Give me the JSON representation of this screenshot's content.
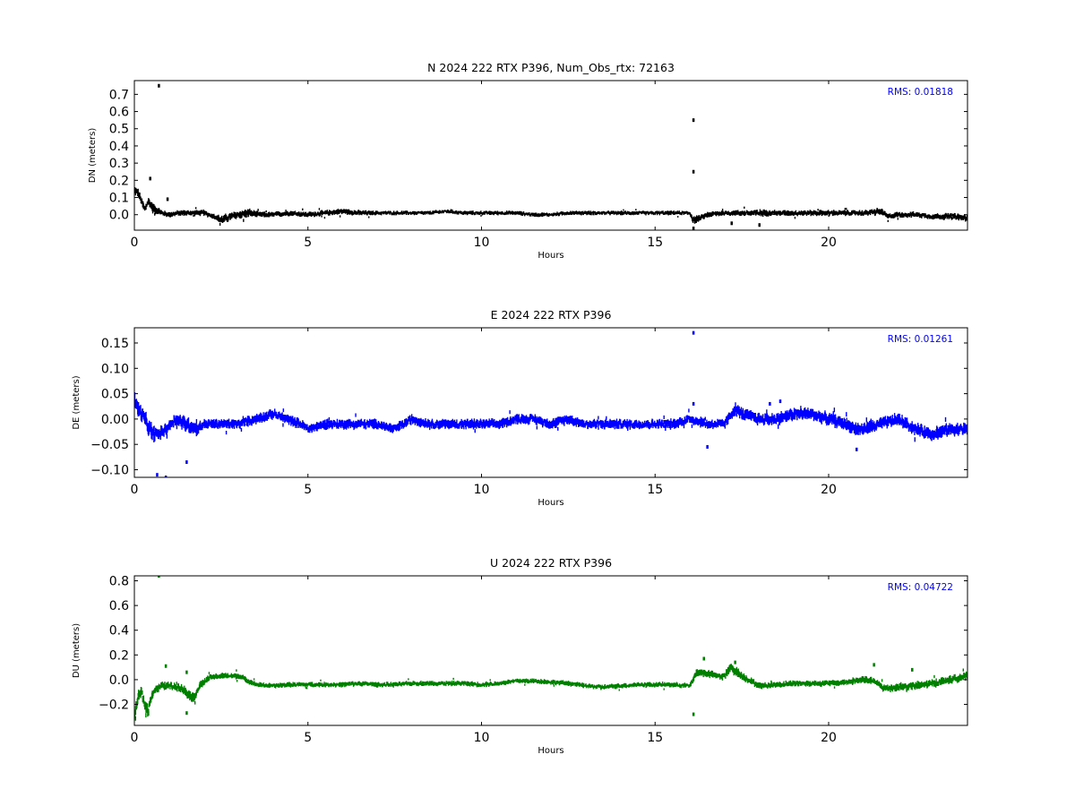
{
  "figure": {
    "background": "#ffffff"
  },
  "chart_data": [
    {
      "type": "scatter",
      "title": "N 2024 222 RTX  P396, Num_Obs_rtx: 72163",
      "xlabel": "Hours",
      "ylabel": "DN (meters)",
      "xlim": [
        0,
        24
      ],
      "ylim": [
        -0.09,
        0.78
      ],
      "xticks": [
        0,
        5,
        10,
        15,
        20
      ],
      "yticks": [
        0.0,
        0.1,
        0.2,
        0.3,
        0.4,
        0.5,
        0.6,
        0.7
      ],
      "ytick_labels": [
        "0.0",
        "0.1",
        "0.2",
        "0.3",
        "0.4",
        "0.5",
        "0.6",
        "0.7"
      ],
      "rms_label": "RMS:  0.01818",
      "rms_color": "#0000ff",
      "color": "#000000",
      "grid": false,
      "series": [
        {
          "x": [
            0.0,
            0.1,
            0.2,
            0.3,
            0.4,
            0.5,
            0.6,
            0.8,
            1.0,
            1.3,
            1.6,
            2.0,
            2.3,
            2.5,
            2.8,
            3.0,
            3.3,
            3.6,
            4.0,
            4.5,
            5.0,
            5.5,
            6.0,
            6.5,
            7.0,
            7.5,
            8.0,
            8.5,
            9.0,
            9.5,
            10.0,
            10.5,
            11.0,
            11.5,
            12.0,
            12.5,
            13.0,
            13.5,
            14.0,
            14.5,
            15.0,
            15.5,
            16.0,
            16.1,
            16.3,
            16.5,
            17.0,
            17.5,
            18.0,
            18.5,
            19.0,
            19.5,
            20.0,
            20.5,
            21.0,
            21.5,
            21.7,
            22.0,
            22.5,
            23.0,
            23.5,
            24.0
          ],
          "y": [
            0.14,
            0.13,
            0.08,
            0.03,
            0.08,
            0.05,
            0.03,
            0.01,
            0.0,
            0.01,
            0.01,
            0.01,
            -0.01,
            -0.03,
            -0.01,
            0.0,
            0.01,
            0.0,
            0.0,
            0.01,
            0.0,
            0.01,
            0.02,
            0.01,
            0.01,
            0.01,
            0.01,
            0.01,
            0.02,
            0.01,
            0.01,
            0.01,
            0.01,
            0.0,
            0.0,
            0.01,
            0.01,
            0.01,
            0.01,
            0.01,
            0.01,
            0.01,
            0.01,
            -0.03,
            -0.02,
            0.0,
            0.01,
            0.01,
            0.01,
            0.01,
            0.01,
            0.01,
            0.01,
            0.01,
            0.01,
            0.02,
            -0.01,
            0.0,
            0.0,
            -0.01,
            -0.01,
            -0.02
          ],
          "spread": [
            0.03,
            0.03,
            0.03,
            0.03,
            0.03,
            0.03,
            0.03,
            0.02,
            0.02,
            0.02,
            0.02,
            0.02,
            0.02,
            0.03,
            0.03,
            0.03,
            0.03,
            0.02,
            0.02,
            0.02,
            0.02,
            0.02,
            0.02,
            0.02,
            0.015,
            0.015,
            0.015,
            0.015,
            0.015,
            0.015,
            0.015,
            0.015,
            0.015,
            0.015,
            0.015,
            0.015,
            0.015,
            0.015,
            0.015,
            0.015,
            0.015,
            0.015,
            0.015,
            0.03,
            0.02,
            0.02,
            0.02,
            0.02,
            0.025,
            0.02,
            0.02,
            0.02,
            0.02,
            0.02,
            0.02,
            0.025,
            0.02,
            0.02,
            0.02,
            0.02,
            0.025,
            0.025
          ],
          "outliers": [
            [
              0.7,
              0.75
            ],
            [
              0.45,
              0.21
            ],
            [
              0.95,
              0.09
            ],
            [
              16.1,
              0.55
            ],
            [
              16.1,
              0.25
            ],
            [
              16.1,
              -0.08
            ],
            [
              17.2,
              -0.05
            ],
            [
              18.0,
              -0.06
            ]
          ]
        }
      ]
    },
    {
      "type": "scatter",
      "title": "E 2024 222 RTX  P396",
      "xlabel": "Hours",
      "ylabel": "DE (meters)",
      "xlim": [
        0,
        24
      ],
      "ylim": [
        -0.115,
        0.18
      ],
      "xticks": [
        0,
        5,
        10,
        15,
        20
      ],
      "yticks": [
        -0.1,
        -0.05,
        0.0,
        0.05,
        0.1,
        0.15
      ],
      "ytick_labels": [
        "−0.10",
        "−0.05",
        "0.00",
        "0.05",
        "0.10",
        "0.15"
      ],
      "rms_label": "RMS:  0.01261",
      "rms_color": "#0000ff",
      "color": "#0000ff",
      "grid": false,
      "series": [
        {
          "x": [
            0.0,
            0.1,
            0.3,
            0.5,
            0.7,
            0.9,
            1.2,
            1.5,
            1.8,
            2.0,
            2.5,
            3.0,
            3.5,
            4.0,
            4.4,
            4.8,
            5.0,
            5.5,
            6.0,
            6.5,
            7.0,
            7.5,
            8.0,
            8.5,
            9.0,
            9.5,
            10.0,
            10.5,
            11.0,
            11.5,
            12.0,
            12.5,
            13.0,
            13.5,
            14.0,
            14.5,
            15.0,
            15.5,
            16.0,
            16.5,
            17.0,
            17.3,
            17.5,
            18.0,
            18.5,
            19.0,
            19.5,
            20.0,
            20.5,
            20.8,
            21.0,
            21.5,
            22.0,
            22.5,
            23.0,
            23.5,
            24.0
          ],
          "y": [
            0.04,
            0.02,
            0.0,
            -0.03,
            -0.03,
            -0.02,
            0.0,
            -0.01,
            -0.02,
            -0.01,
            -0.01,
            -0.01,
            0.0,
            0.01,
            0.0,
            -0.01,
            -0.02,
            -0.01,
            -0.01,
            -0.01,
            -0.01,
            -0.02,
            0.0,
            -0.01,
            -0.01,
            -0.01,
            -0.01,
            -0.01,
            0.0,
            0.0,
            -0.01,
            0.0,
            -0.01,
            -0.01,
            -0.01,
            -0.01,
            -0.01,
            -0.01,
            0.0,
            -0.01,
            -0.01,
            0.02,
            0.01,
            0.0,
            0.0,
            0.01,
            0.01,
            0.0,
            -0.01,
            -0.02,
            -0.02,
            -0.01,
            0.0,
            -0.02,
            -0.03,
            -0.02,
            -0.02
          ],
          "spread": [
            0.02,
            0.02,
            0.02,
            0.02,
            0.015,
            0.015,
            0.015,
            0.02,
            0.015,
            0.012,
            0.012,
            0.012,
            0.012,
            0.012,
            0.012,
            0.012,
            0.012,
            0.012,
            0.012,
            0.012,
            0.012,
            0.012,
            0.012,
            0.012,
            0.012,
            0.012,
            0.012,
            0.012,
            0.012,
            0.012,
            0.012,
            0.012,
            0.012,
            0.012,
            0.012,
            0.012,
            0.012,
            0.012,
            0.012,
            0.012,
            0.012,
            0.015,
            0.015,
            0.015,
            0.015,
            0.015,
            0.015,
            0.015,
            0.015,
            0.015,
            0.015,
            0.015,
            0.015,
            0.015,
            0.015,
            0.015,
            0.015
          ],
          "outliers": [
            [
              0.65,
              -0.11
            ],
            [
              0.9,
              -0.115
            ],
            [
              1.5,
              -0.085
            ],
            [
              16.1,
              0.17
            ],
            [
              16.1,
              0.03
            ],
            [
              16.5,
              -0.055
            ],
            [
              18.3,
              0.03
            ],
            [
              18.6,
              0.035
            ],
            [
              20.8,
              -0.06
            ]
          ]
        }
      ]
    },
    {
      "type": "scatter",
      "title": "U 2024 222 RTX  P396",
      "xlabel": "Hours",
      "ylabel": "DU (meters)",
      "xlim": [
        0,
        24
      ],
      "ylim": [
        -0.37,
        0.84
      ],
      "xticks": [
        0,
        5,
        10,
        15,
        20
      ],
      "yticks": [
        -0.2,
        0.0,
        0.2,
        0.4,
        0.6,
        0.8
      ],
      "ytick_labels": [
        "−0.2",
        "0.0",
        "0.2",
        "0.4",
        "0.6",
        "0.8"
      ],
      "rms_label": "RMS:  0.04722",
      "rms_color": "#0000ff",
      "color": "#007f00",
      "grid": false,
      "series": [
        {
          "x": [
            0.0,
            0.1,
            0.2,
            0.3,
            0.4,
            0.5,
            0.6,
            0.8,
            1.0,
            1.3,
            1.5,
            1.7,
            1.9,
            2.2,
            2.5,
            3.0,
            3.5,
            4.0,
            4.5,
            5.0,
            5.5,
            6.0,
            6.5,
            7.0,
            7.5,
            8.0,
            8.5,
            9.0,
            9.5,
            10.0,
            10.5,
            11.0,
            11.5,
            12.0,
            12.5,
            13.0,
            13.5,
            14.0,
            14.5,
            15.0,
            15.5,
            16.0,
            16.2,
            16.5,
            16.8,
            17.0,
            17.2,
            17.5,
            18.0,
            18.5,
            19.0,
            19.5,
            20.0,
            20.5,
            21.0,
            21.3,
            21.6,
            22.0,
            22.5,
            23.0,
            23.5,
            24.0
          ],
          "y": [
            -0.3,
            -0.15,
            -0.1,
            -0.2,
            -0.25,
            -0.12,
            -0.08,
            -0.05,
            -0.05,
            -0.06,
            -0.1,
            -0.15,
            -0.04,
            0.02,
            0.03,
            0.03,
            -0.04,
            -0.05,
            -0.04,
            -0.04,
            -0.04,
            -0.04,
            -0.03,
            -0.04,
            -0.04,
            -0.03,
            -0.03,
            -0.03,
            -0.03,
            -0.04,
            -0.03,
            -0.01,
            -0.01,
            -0.02,
            -0.03,
            -0.05,
            -0.06,
            -0.05,
            -0.04,
            -0.04,
            -0.04,
            -0.05,
            0.06,
            0.05,
            0.03,
            0.03,
            0.1,
            0.03,
            -0.05,
            -0.04,
            -0.03,
            -0.03,
            -0.03,
            -0.02,
            0.0,
            -0.01,
            -0.07,
            -0.06,
            -0.05,
            -0.03,
            0.0,
            0.03
          ],
          "spread": [
            0.06,
            0.06,
            0.06,
            0.06,
            0.06,
            0.05,
            0.04,
            0.04,
            0.04,
            0.04,
            0.05,
            0.05,
            0.04,
            0.03,
            0.03,
            0.03,
            0.025,
            0.025,
            0.025,
            0.025,
            0.025,
            0.025,
            0.025,
            0.025,
            0.025,
            0.025,
            0.025,
            0.025,
            0.025,
            0.025,
            0.025,
            0.025,
            0.025,
            0.025,
            0.025,
            0.025,
            0.025,
            0.025,
            0.025,
            0.025,
            0.025,
            0.025,
            0.04,
            0.04,
            0.03,
            0.04,
            0.05,
            0.04,
            0.03,
            0.03,
            0.03,
            0.03,
            0.03,
            0.03,
            0.04,
            0.03,
            0.04,
            0.04,
            0.04,
            0.04,
            0.04,
            0.04
          ],
          "outliers": [
            [
              0.7,
              0.84
            ],
            [
              0.9,
              0.11
            ],
            [
              1.5,
              -0.27
            ],
            [
              1.5,
              0.06
            ],
            [
              16.1,
              -0.28
            ],
            [
              16.4,
              0.17
            ],
            [
              17.3,
              0.14
            ],
            [
              21.3,
              0.12
            ],
            [
              22.4,
              0.08
            ]
          ]
        }
      ]
    }
  ]
}
